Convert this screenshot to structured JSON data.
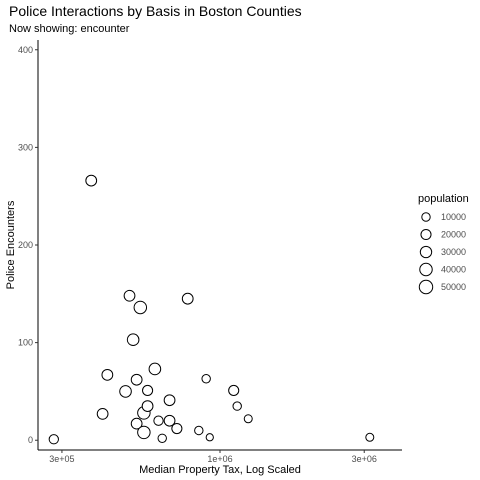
{
  "chart_data": {
    "type": "scatter",
    "title": "Police Interactions by Basis in Boston Counties",
    "subtitle": "Now showing: encounter",
    "xlabel": "Median Property Tax, Log Scaled",
    "ylabel": "Police Encounters",
    "x_scale": "log",
    "xlim": [
      250000,
      4000000
    ],
    "ylim": [
      -10,
      410
    ],
    "x_ticks": [
      {
        "value": 300000,
        "label": "3e+05"
      },
      {
        "value": 1000000,
        "label": "1e+06"
      },
      {
        "value": 3000000,
        "label": "3e+06"
      }
    ],
    "y_ticks": [
      {
        "value": 0,
        "label": "0"
      },
      {
        "value": 100,
        "label": "100"
      },
      {
        "value": 200,
        "label": "200"
      },
      {
        "value": 300,
        "label": "300"
      },
      {
        "value": 400,
        "label": "400"
      }
    ],
    "grid": false,
    "legend": {
      "title": "population",
      "placement": "right",
      "entries": [
        {
          "value": 10000,
          "label": "10000"
        },
        {
          "value": 20000,
          "label": "20000"
        },
        {
          "value": 30000,
          "label": "30000"
        },
        {
          "value": 40000,
          "label": "40000"
        },
        {
          "value": 50000,
          "label": "50000"
        }
      ]
    },
    "points": [
      {
        "x": 282000,
        "y": 1,
        "size": 15000
      },
      {
        "x": 375000,
        "y": 266,
        "size": 25000
      },
      {
        "x": 409000,
        "y": 27,
        "size": 25000
      },
      {
        "x": 424000,
        "y": 67,
        "size": 25000
      },
      {
        "x": 487000,
        "y": 50,
        "size": 32000
      },
      {
        "x": 502000,
        "y": 148,
        "size": 25000
      },
      {
        "x": 516000,
        "y": 103,
        "size": 32000
      },
      {
        "x": 530000,
        "y": 62,
        "size": 25000
      },
      {
        "x": 530000,
        "y": 17,
        "size": 25000
      },
      {
        "x": 545000,
        "y": 136,
        "size": 40000
      },
      {
        "x": 560000,
        "y": 8,
        "size": 40000
      },
      {
        "x": 560000,
        "y": 28,
        "size": 40000
      },
      {
        "x": 576000,
        "y": 35,
        "size": 25000
      },
      {
        "x": 576000,
        "y": 51,
        "size": 20000
      },
      {
        "x": 609000,
        "y": 73,
        "size": 32000
      },
      {
        "x": 626000,
        "y": 20,
        "size": 15000
      },
      {
        "x": 644000,
        "y": 2,
        "size": 10000
      },
      {
        "x": 681000,
        "y": 41,
        "size": 25000
      },
      {
        "x": 681000,
        "y": 20,
        "size": 25000
      },
      {
        "x": 720000,
        "y": 12,
        "size": 20000
      },
      {
        "x": 782000,
        "y": 145,
        "size": 25000
      },
      {
        "x": 851000,
        "y": 10,
        "size": 10000
      },
      {
        "x": 900000,
        "y": 63,
        "size": 10000
      },
      {
        "x": 925000,
        "y": 3,
        "size": 5000
      },
      {
        "x": 1110000,
        "y": 51,
        "size": 20000
      },
      {
        "x": 1140000,
        "y": 35,
        "size": 10000
      },
      {
        "x": 1240000,
        "y": 22,
        "size": 8000
      },
      {
        "x": 3130000,
        "y": 3,
        "size": 8000
      }
    ]
  }
}
